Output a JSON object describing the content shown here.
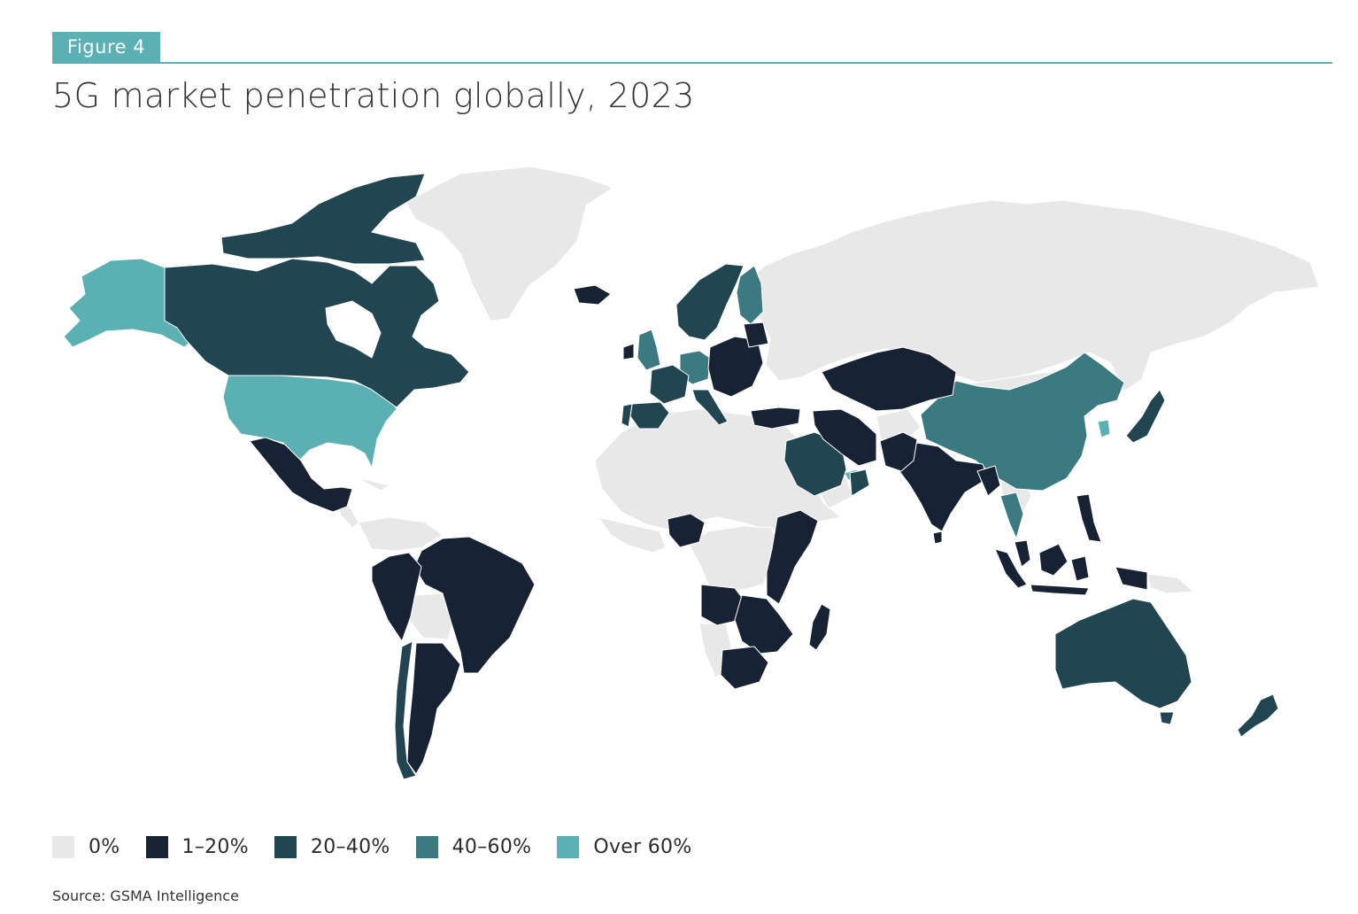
{
  "figure_tag": "Figure 4",
  "title": "5G market penetration globally, 2023",
  "source": "Source: GSMA Intelligence",
  "colors": {
    "none": "#e8e8e8",
    "low": "#172334",
    "mid": "#214651",
    "high": "#3b7a80",
    "top": "#5ab0b2",
    "accent": "#5ab0b2"
  },
  "legend": [
    {
      "label": "0%",
      "color": "#e8e8e8"
    },
    {
      "label": "1–20%",
      "color": "#172334"
    },
    {
      "label": "20–40%",
      "color": "#214651"
    },
    {
      "label": "40–60%",
      "color": "#3b7a80"
    },
    {
      "label": "Over 60%",
      "color": "#5ab0b2"
    }
  ],
  "chart_data": {
    "type": "choropleth",
    "measure": "5G market penetration",
    "year": 2023,
    "categories": [
      "0%",
      "1–20%",
      "20–40%",
      "40–60%",
      "Over 60%"
    ],
    "regions": [
      {
        "name": "United States",
        "category": "Over 60%"
      },
      {
        "name": "Alaska",
        "category": "Over 60%"
      },
      {
        "name": "South Korea",
        "category": "Over 60%"
      },
      {
        "name": "United Arab Emirates",
        "category": "Over 60%"
      },
      {
        "name": "China",
        "category": "40–60%"
      },
      {
        "name": "Finland",
        "category": "40–60%"
      },
      {
        "name": "Germany",
        "category": "40–60%"
      },
      {
        "name": "United Kingdom",
        "category": "40–60%"
      },
      {
        "name": "Thailand",
        "category": "40–60%"
      },
      {
        "name": "Canada",
        "category": "20–40%"
      },
      {
        "name": "Australia",
        "category": "20–40%"
      },
      {
        "name": "Japan",
        "category": "20–40%"
      },
      {
        "name": "Saudi Arabia",
        "category": "20–40%"
      },
      {
        "name": "France",
        "category": "20–40%"
      },
      {
        "name": "Spain",
        "category": "20–40%"
      },
      {
        "name": "Italy",
        "category": "20–40%"
      },
      {
        "name": "Norway",
        "category": "20–40%"
      },
      {
        "name": "Sweden",
        "category": "20–40%"
      },
      {
        "name": "Chile",
        "category": "20–40%"
      },
      {
        "name": "New Zealand",
        "category": "20–40%"
      },
      {
        "name": "Portugal",
        "category": "20–40%"
      },
      {
        "name": "Oman",
        "category": "20–40%"
      },
      {
        "name": "Mexico",
        "category": "1–20%"
      },
      {
        "name": "Brazil",
        "category": "1–20%"
      },
      {
        "name": "Argentina",
        "category": "1–20%"
      },
      {
        "name": "Peru",
        "category": "1–20%"
      },
      {
        "name": "Colombia",
        "category": "1–20%"
      },
      {
        "name": "Ecuador",
        "category": "1–20%"
      },
      {
        "name": "Uruguay",
        "category": "1–20%"
      },
      {
        "name": "India",
        "category": "1–20%"
      },
      {
        "name": "Pakistan",
        "category": "1–20%"
      },
      {
        "name": "Iran",
        "category": "1–20%"
      },
      {
        "name": "Kazakhstan",
        "category": "1–20%"
      },
      {
        "name": "Indonesia",
        "category": "1–20%"
      },
      {
        "name": "Malaysia",
        "category": "1–20%"
      },
      {
        "name": "Philippines",
        "category": "1–20%"
      },
      {
        "name": "Nigeria",
        "category": "1–20%"
      },
      {
        "name": "Ethiopia",
        "category": "1–20%"
      },
      {
        "name": "Kenya",
        "category": "1–20%"
      },
      {
        "name": "Tanzania",
        "category": "1–20%"
      },
      {
        "name": "Angola",
        "category": "1–20%"
      },
      {
        "name": "Zambia",
        "category": "1–20%"
      },
      {
        "name": "Mozambique",
        "category": "1–20%"
      },
      {
        "name": "South Africa",
        "category": "1–20%"
      },
      {
        "name": "Madagascar",
        "category": "1–20%"
      },
      {
        "name": "Poland",
        "category": "1–20%"
      },
      {
        "name": "Iceland",
        "category": "1–20%"
      },
      {
        "name": "Baltic states",
        "category": "1–20%"
      },
      {
        "name": "Romania",
        "category": "1–20%"
      },
      {
        "name": "Turkey",
        "category": "1–20%"
      },
      {
        "name": "Russia",
        "category": "0%"
      },
      {
        "name": "Greenland",
        "category": "0%"
      },
      {
        "name": "North Africa",
        "category": "0%"
      },
      {
        "name": "Central Africa",
        "category": "0%"
      },
      {
        "name": "Bolivia",
        "category": "0%"
      },
      {
        "name": "Venezuela",
        "category": "0%"
      },
      {
        "name": "Mongolia",
        "category": "0%"
      }
    ]
  }
}
